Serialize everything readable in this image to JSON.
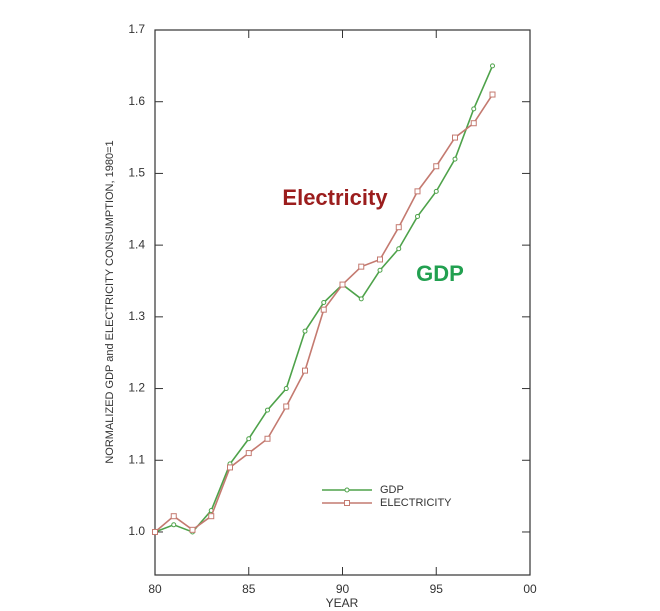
{
  "chart_data": {
    "type": "line",
    "ylabel": "NORMALIZED GDP and ELECTRICITY CONSUMPTION, 1980=1",
    "xlabel": "YEAR",
    "x": [
      80,
      81,
      82,
      83,
      84,
      85,
      86,
      87,
      88,
      89,
      90,
      91,
      92,
      93,
      94,
      95,
      96,
      97,
      98
    ],
    "series": [
      {
        "name": "GDP",
        "color": "#4ea24a",
        "marker": "circle",
        "values": [
          1.0,
          1.01,
          1.0,
          1.03,
          1.095,
          1.13,
          1.17,
          1.2,
          1.28,
          1.32,
          1.345,
          1.325,
          1.365,
          1.395,
          1.44,
          1.475,
          1.52,
          1.59,
          1.65
        ]
      },
      {
        "name": "ELECTRICITY",
        "color": "#c47a70",
        "marker": "square",
        "values": [
          1.0,
          1.022,
          1.003,
          1.022,
          1.09,
          1.11,
          1.13,
          1.175,
          1.225,
          1.31,
          1.345,
          1.37,
          1.38,
          1.425,
          1.475,
          1.51,
          1.55,
          1.57,
          1.61
        ]
      }
    ],
    "annotations": [
      {
        "text": "Electricity",
        "color": "#9b1d1d"
      },
      {
        "text": "GDP",
        "color": "#22a050"
      }
    ],
    "xlim": [
      80,
      100
    ],
    "xticks": [
      80,
      85,
      90,
      95,
      {
        "value": 100,
        "label": "00"
      }
    ],
    "ylim": [
      0.94,
      1.7
    ],
    "yticks": [
      {
        "value": 1,
        "label": "1.0"
      },
      1.1,
      1.2,
      1.3,
      1.4,
      1.5,
      1.6,
      1.7
    ],
    "legend": "lower right"
  }
}
